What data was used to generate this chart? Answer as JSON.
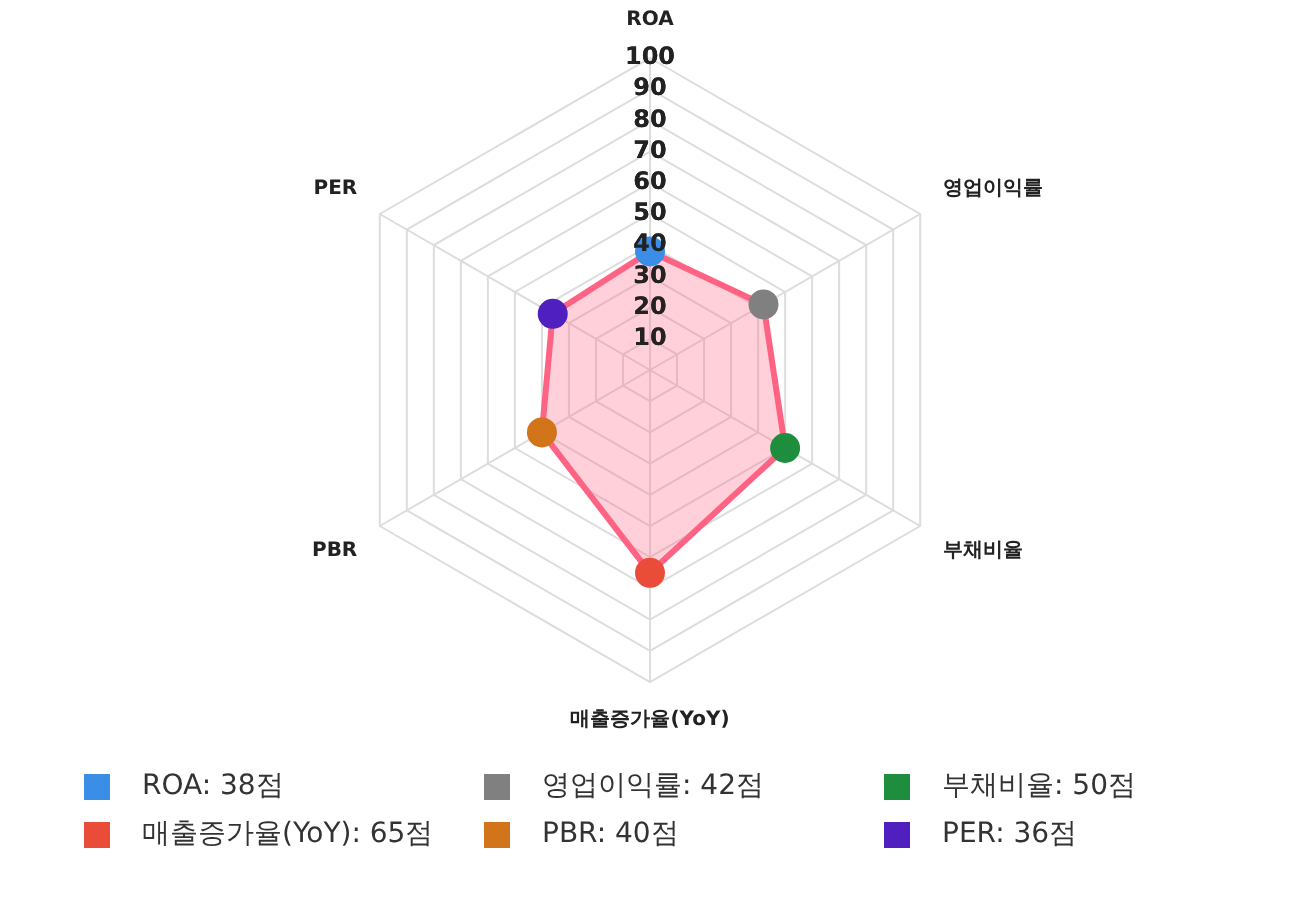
{
  "chart_data": {
    "type": "radar",
    "categories": [
      "ROA",
      "영업이익률",
      "부채비율",
      "매출증가율(YoY)",
      "PBR",
      "PER"
    ],
    "series": [
      {
        "color": "#ff6384",
        "values": [
          38,
          42,
          50,
          65,
          40,
          36
        ]
      }
    ],
    "colors": [
      "#3a8ee6",
      "#808080",
      "#1e8e3e",
      "#ea4c3a",
      "#d2741a",
      "#4f1fc0"
    ],
    "value_labels": [
      "ROA: 38점",
      "영업이익률: 42점",
      "부채비율: 50점",
      "매출증가율(YoY): 65점",
      "PBR: 40점",
      "PER: 36점"
    ],
    "ylim": [
      0,
      100
    ],
    "yticks": [
      10,
      20,
      30,
      40,
      50,
      60,
      70,
      80,
      90,
      100
    ],
    "grid": true
  }
}
